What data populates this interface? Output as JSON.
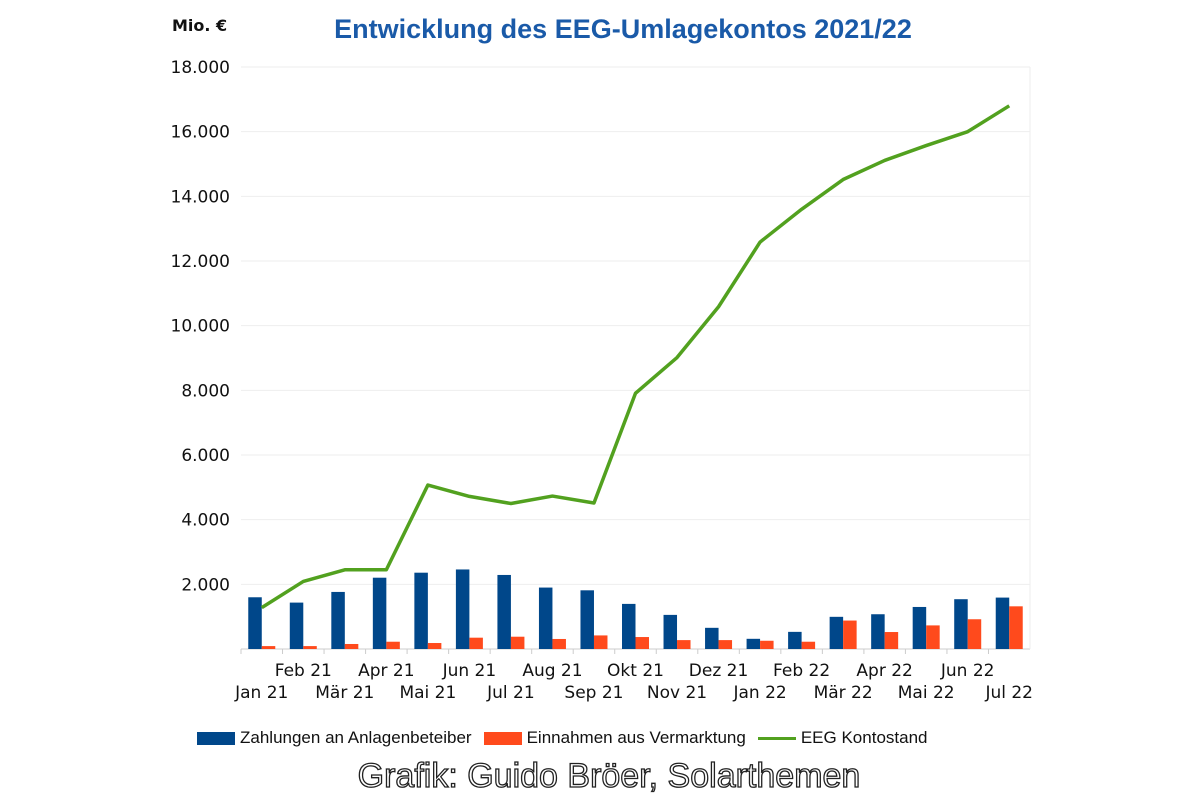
{
  "chart_data": {
    "type": "bar",
    "title": "Entwicklung des EEG-Umlagekontos 2021/22",
    "ylabel": "Mio. €",
    "ylim": [
      0,
      18000
    ],
    "yticks": [
      "",
      "2.000",
      "4.000",
      "6.000",
      "8.000",
      "10.000",
      "12.000",
      "14.000",
      "16.000",
      "18.000"
    ],
    "grid": true,
    "legend_position": "bottom",
    "categories": [
      "Jan 21",
      "Feb 21",
      "Mär 21",
      "Apr 21",
      "Mai 21",
      "Jun 21",
      "Jul 21",
      "Aug 21",
      "Sep 21",
      "Okt 21",
      "Nov 21",
      "Dez 21",
      "Jan 22",
      "Feb 22",
      "Mär 22",
      "Apr 22",
      "Mai 22",
      "Jun 22",
      "Jul 22"
    ],
    "series": [
      {
        "name": "Zahlungen an Anlagenbeteiber",
        "type": "bar",
        "color": "#00478a",
        "values": [
          1600,
          1435,
          1765,
          2205,
          2360,
          2460,
          2290,
          1900,
          1815,
          1395,
          1055,
          655,
          315,
          530,
          995,
          1075,
          1300,
          1540,
          1590
        ]
      },
      {
        "name": "Einnahmen aus Vermarktung",
        "type": "bar",
        "color": "#ff4a1c",
        "values": [
          90,
          90,
          155,
          225,
          185,
          350,
          380,
          310,
          420,
          370,
          275,
          275,
          255,
          225,
          880,
          525,
          730,
          920,
          1320
        ]
      },
      {
        "name": "EEG Kontostand",
        "type": "line",
        "color": "#52a11f",
        "values": [
          1280,
          2090,
          2450,
          2450,
          5070,
          4720,
          4500,
          4730,
          4515,
          7910,
          9015,
          10585,
          12585,
          13600,
          14520,
          15110,
          15570,
          16000,
          16800
        ]
      }
    ]
  },
  "credit": "Grafik: Guido Bröer, Solarthemen"
}
